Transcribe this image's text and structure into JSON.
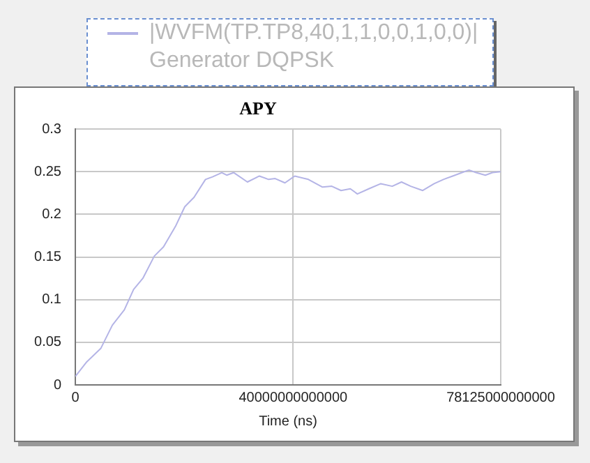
{
  "chart_data": {
    "type": "line",
    "title": "APY",
    "xlabel": "Time (ns)",
    "xlim": [
      0,
      78125000000000
    ],
    "xticks": [
      0,
      40000000000000,
      78125000000000
    ],
    "ylim": [
      0,
      0.3
    ],
    "yticks": [
      0,
      0.05,
      0.1,
      0.15,
      0.2,
      0.25,
      0.3
    ],
    "grid": true,
    "legend": "top",
    "marker": "none",
    "line_style": "solid",
    "series": [
      {
        "name": "|WVFM(TP.TP8,40,1,1,0,0,1,0,0)| Generator DQPSK",
        "color": "#b4b4e6",
        "x": [
          0,
          2100000000000,
          4700000000000,
          6800000000000,
          9000000000000,
          10700000000000,
          12400000000000,
          14500000000000,
          16200000000000,
          18400000000000,
          20100000000000,
          21800000000000,
          23900000000000,
          25200000000000,
          26900000000000,
          27800000000000,
          29100000000000,
          31600000000000,
          33800000000000,
          35500000000000,
          36700000000000,
          38500000000000,
          40300000000000,
          42800000000000,
          45400000000000,
          47100000000000,
          48800000000000,
          50500000000000,
          51800000000000,
          53900000000000,
          56100000000000,
          58200000000000,
          59900000000000,
          61600000000000,
          63800000000000,
          65900000000000,
          67600000000000,
          69300000000000,
          71000000000000,
          72300000000000,
          73600000000000,
          75300000000000,
          76600000000000,
          78100000000000
        ],
        "values": [
          0.01,
          0.027,
          0.043,
          0.07,
          0.088,
          0.112,
          0.125,
          0.151,
          0.162,
          0.186,
          0.209,
          0.22,
          0.241,
          0.244,
          0.249,
          0.246,
          0.249,
          0.238,
          0.245,
          0.241,
          0.242,
          0.237,
          0.245,
          0.241,
          0.232,
          0.233,
          0.228,
          0.23,
          0.224,
          0.23,
          0.236,
          0.233,
          0.238,
          0.233,
          0.228,
          0.236,
          0.241,
          0.245,
          0.249,
          0.252,
          0.249,
          0.246,
          0.249,
          0.25
        ]
      }
    ]
  }
}
